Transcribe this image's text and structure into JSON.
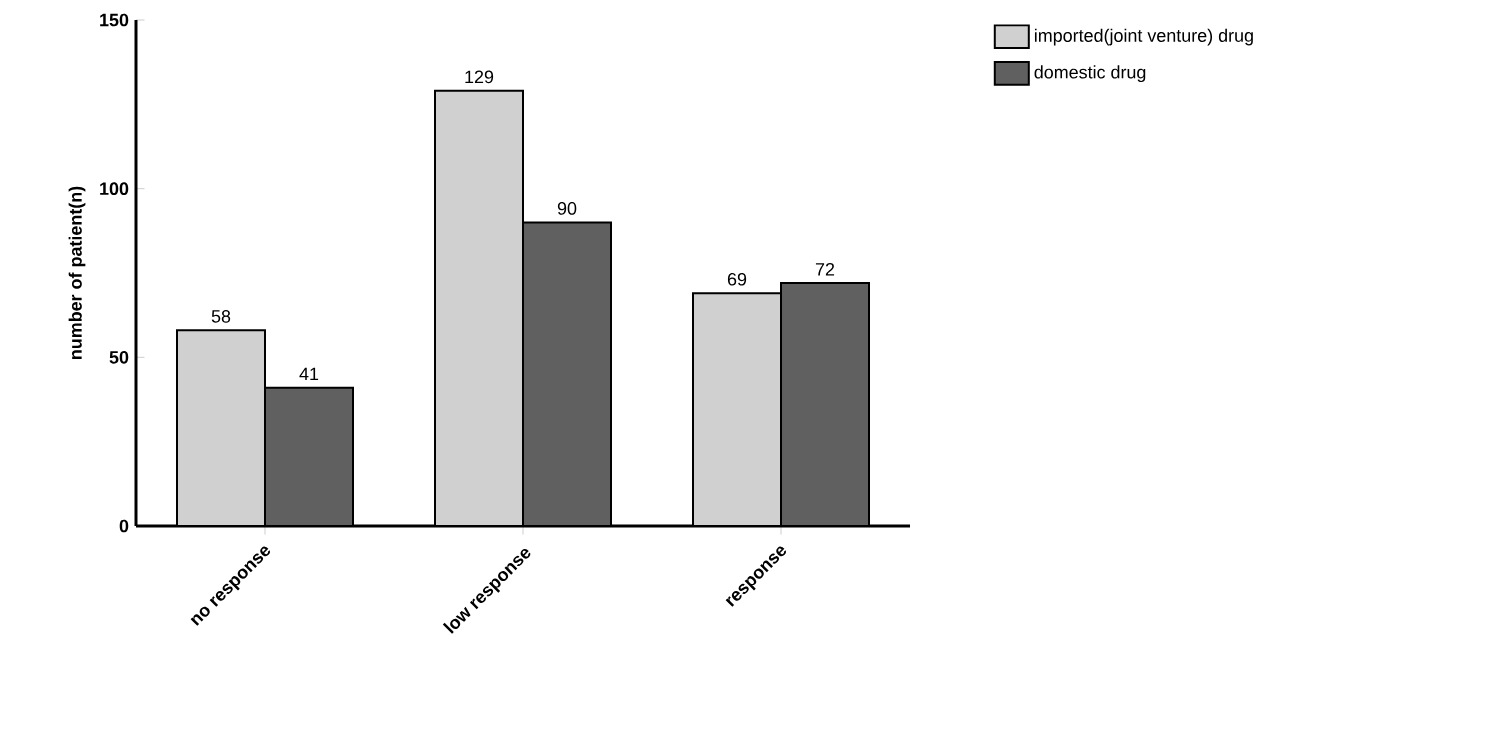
{
  "chart_data": {
    "type": "bar",
    "ylabel": "number of patient(n)",
    "categories": [
      "no response",
      "low response",
      "response"
    ],
    "series": [
      {
        "name": "imported(joint venture) drug",
        "color": "#d0d0d0",
        "values": [
          58,
          129,
          69
        ]
      },
      {
        "name": "domestic drug",
        "color": "#606060",
        "values": [
          41,
          90,
          72
        ]
      }
    ],
    "ylim": [
      0,
      150
    ],
    "yticks": [
      0,
      50,
      100,
      150
    ],
    "data_labels": true,
    "legend": "top right",
    "grid": false
  }
}
